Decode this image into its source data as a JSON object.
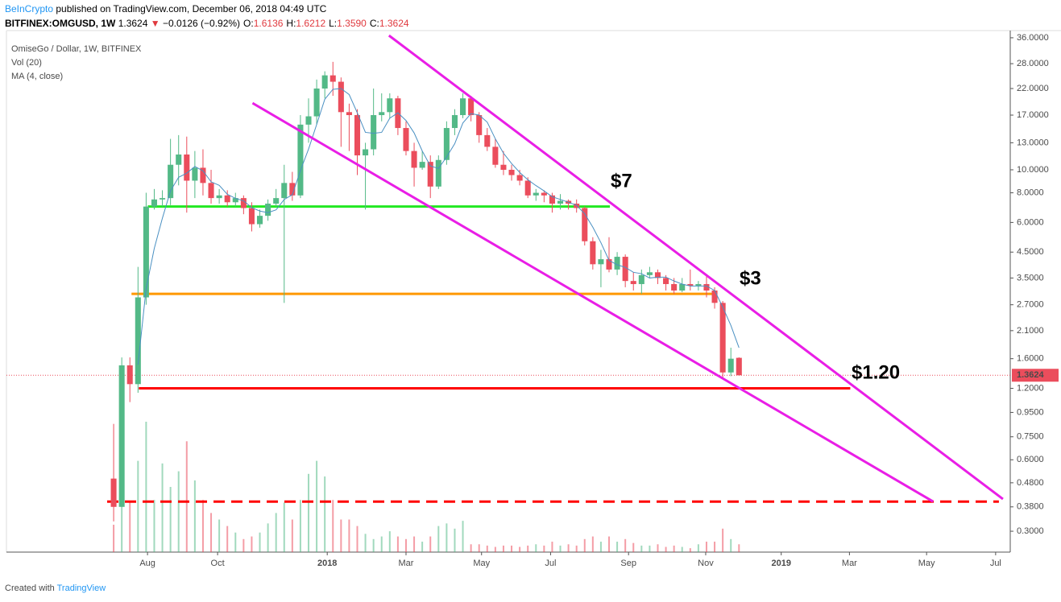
{
  "header": {
    "publisher": "BeInCrypto",
    "published": "published on TradingView.com, December 06, 2018 04:49 UTC",
    "symbol": "BITFINEX:OMGUSD, 1W",
    "last": "1.3624",
    "arrow": "▼",
    "change": "−0.0126 (−0.92%)",
    "ohlc": [
      {
        "key": "O:",
        "value": "1.6136"
      },
      {
        "key": "H:",
        "value": "1.6212"
      },
      {
        "key": "L:",
        "value": "1.3590"
      },
      {
        "key": "C:",
        "value": "1.3624"
      }
    ]
  },
  "chart_data": {
    "type": "candlestick",
    "title": "OmiseGo / Dollar, 1W, BITFINEX",
    "indicators": [
      "Vol (20)",
      "MA (4, close)"
    ],
    "log_scale": true,
    "grid": false,
    "up_color": "#53b987",
    "down_color": "#eb4d5c",
    "ma_color": "#4a90c2",
    "xlim": [
      -13.2,
      110.4
    ],
    "ylim": [
      0.245,
      38.6
    ],
    "xticks": [
      {
        "value": 4.17,
        "label": "Aug"
      },
      {
        "value": 12.8,
        "label": "Oct"
      },
      {
        "value": 26.3,
        "label": "2018"
      },
      {
        "value": 36.0,
        "label": "Mar"
      },
      {
        "value": 45.3,
        "label": "May"
      },
      {
        "value": 53.8,
        "label": "Jul"
      },
      {
        "value": 63.4,
        "label": "Sep"
      },
      {
        "value": 72.9,
        "label": "Nov"
      },
      {
        "value": 82.2,
        "label": "2019"
      },
      {
        "value": 90.6,
        "label": "Mar"
      },
      {
        "value": 100.1,
        "label": "May"
      },
      {
        "value": 108.6,
        "label": "Jul"
      }
    ],
    "yticks": [
      {
        "value": 36,
        "label": "36.0000"
      },
      {
        "value": 28,
        "label": "28.0000"
      },
      {
        "value": 22,
        "label": "22.0000"
      },
      {
        "value": 17,
        "label": "17.0000"
      },
      {
        "value": 13,
        "label": "13.0000"
      },
      {
        "value": 10,
        "label": "10.0000"
      },
      {
        "value": 8,
        "label": "8.0000"
      },
      {
        "value": 6,
        "label": "6.0000"
      },
      {
        "value": 4.5,
        "label": "4.5000"
      },
      {
        "value": 3.5,
        "label": "3.5000"
      },
      {
        "value": 2.7,
        "label": "2.7000"
      },
      {
        "value": 2.1,
        "label": "2.1000"
      },
      {
        "value": 1.6,
        "label": "1.6000"
      },
      {
        "value": 1.2,
        "label": "1.2000"
      },
      {
        "value": 0.95,
        "label": "0.9500"
      },
      {
        "value": 0.75,
        "label": "0.7500"
      },
      {
        "value": 0.6,
        "label": "0.6000"
      },
      {
        "value": 0.48,
        "label": "0.4800"
      },
      {
        "value": 0.38,
        "label": "0.3800"
      },
      {
        "value": 0.3,
        "label": "0.3000"
      }
    ],
    "candles": [
      [
        0.5,
        0.85,
        0.33,
        0.38
      ],
      [
        0.38,
        1.62,
        0.38,
        1.5
      ],
      [
        1.5,
        1.62,
        1.05,
        1.25
      ],
      [
        1.25,
        3.9,
        1.15,
        2.9
      ],
      [
        2.9,
        8,
        2.7,
        7
      ],
      [
        7,
        8.3,
        6.8,
        7.5
      ],
      [
        7.5,
        8.2,
        7,
        7.6
      ],
      [
        7.6,
        13.5,
        7.1,
        10.5
      ],
      [
        10.5,
        14,
        8.6,
        11.6
      ],
      [
        11.6,
        13.8,
        6.6,
        9
      ],
      [
        9,
        12,
        7.6,
        10.2
      ],
      [
        10.2,
        12.2,
        7.8,
        8.8
      ],
      [
        8.8,
        10,
        7.2,
        7.6
      ],
      [
        7.6,
        8.3,
        7.2,
        7.8
      ],
      [
        7.8,
        8.2,
        7,
        7.3
      ],
      [
        7.3,
        8,
        7,
        7.6
      ],
      [
        7.6,
        7.8,
        6.5,
        6.9
      ],
      [
        6.9,
        7.3,
        5.5,
        5.9
      ],
      [
        5.9,
        6.8,
        5.7,
        6.4
      ],
      [
        6.4,
        7.5,
        6.1,
        7.2
      ],
      [
        7.2,
        8.3,
        7,
        7.6
      ],
      [
        7.6,
        10.5,
        2.75,
        8.8
      ],
      [
        8.8,
        9.8,
        7.4,
        7.8
      ],
      [
        7.8,
        17,
        7.6,
        15.5
      ],
      [
        15.5,
        20,
        13,
        16.8
      ],
      [
        16.8,
        24,
        15.5,
        22
      ],
      [
        22,
        26,
        20,
        25
      ],
      [
        25,
        28.5,
        20.5,
        23.5
      ],
      [
        23.5,
        24.5,
        12.5,
        17.5
      ],
      [
        17.5,
        19,
        12,
        17
      ],
      [
        17,
        18,
        9.5,
        11.5
      ],
      [
        11.5,
        13,
        6.8,
        12.2
      ],
      [
        12.2,
        22,
        11.5,
        17
      ],
      [
        17,
        21,
        16,
        17.5
      ],
      [
        17.5,
        21,
        16.5,
        20
      ],
      [
        20,
        20.5,
        14,
        15
      ],
      [
        15,
        16,
        11.5,
        12
      ],
      [
        12,
        13,
        8.5,
        10.2
      ],
      [
        10.2,
        12,
        10,
        10.8
      ],
      [
        10.8,
        11.5,
        7.6,
        8.5
      ],
      [
        8.5,
        11.5,
        8.3,
        11
      ],
      [
        11,
        16,
        10.5,
        15
      ],
      [
        15,
        18,
        14,
        17
      ],
      [
        17,
        21,
        16.5,
        20
      ],
      [
        20,
        20.5,
        16,
        17
      ],
      [
        17,
        17.5,
        13,
        14
      ],
      [
        14,
        15,
        12,
        12.5
      ],
      [
        12.5,
        13.5,
        10.2,
        10.5
      ],
      [
        10.5,
        12,
        9.5,
        10
      ],
      [
        10,
        10.5,
        9,
        9.5
      ],
      [
        9.5,
        10,
        8.6,
        9
      ],
      [
        9,
        9.3,
        7.6,
        7.8
      ],
      [
        7.8,
        8.3,
        7.4,
        8
      ],
      [
        8,
        8.2,
        7.3,
        7.8
      ],
      [
        7.8,
        8,
        6.6,
        7.2
      ],
      [
        7.2,
        7.9,
        6.8,
        7.4
      ],
      [
        7.4,
        7.5,
        6.8,
        7.2
      ],
      [
        7.2,
        7.5,
        6.6,
        6.9
      ],
      [
        6.9,
        7,
        4.8,
        5
      ],
      [
        5,
        5.2,
        3.8,
        4
      ],
      [
        4,
        4.6,
        3.2,
        4.2
      ],
      [
        4.2,
        5.2,
        3.7,
        3.8
      ],
      [
        3.8,
        4.5,
        3.6,
        4.3
      ],
      [
        4.3,
        4.4,
        3.2,
        3.4
      ],
      [
        3.4,
        3.7,
        3.1,
        3.3
      ],
      [
        3.3,
        3.8,
        3,
        3.6
      ],
      [
        3.6,
        3.9,
        3.5,
        3.7
      ],
      [
        3.7,
        3.8,
        3.3,
        3.5
      ],
      [
        3.5,
        3.6,
        3.1,
        3.3
      ],
      [
        3.3,
        3.5,
        3,
        3.1
      ],
      [
        3.1,
        3.5,
        3.05,
        3.3
      ],
      [
        3.3,
        3.8,
        3.1,
        3.25
      ],
      [
        3.25,
        3.4,
        3.1,
        3.3
      ],
      [
        3.3,
        3.6,
        2.9,
        3.1
      ],
      [
        3.1,
        3.2,
        2.6,
        2.75
      ],
      [
        2.75,
        2.8,
        1.32,
        1.4
      ],
      [
        1.4,
        1.78,
        1.35,
        1.6
      ],
      [
        1.6136,
        1.6212,
        1.359,
        1.3624
      ]
    ],
    "ma": [
      null,
      null,
      null,
      1.51,
      3.16,
      4.66,
      6.25,
      8.15,
      9.3,
      9.68,
      10.33,
      9.9,
      8.9,
      8.6,
      7.88,
      7.58,
      7.4,
      6.93,
      6.7,
      6.6,
      6.78,
      7.5,
      7.85,
      9.93,
      12.23,
      15.53,
      19.83,
      21.83,
      22,
      20.75,
      17.38,
      14.38,
      14.25,
      14.38,
      16.5,
      17.38,
      16.13,
      14.3,
      12,
      10.38,
      10.13,
      11.33,
      12.88,
      15.75,
      17.25,
      17,
      15.88,
      13.5,
      11.75,
      10.63,
      9.75,
      9.08,
      8.58,
      8.15,
      7.7,
      7.5,
      7.3,
      7.08,
      6.53,
      5.73,
      4.93,
      4.15,
      3.98,
      3.88,
      3.7,
      3.65,
      3.5,
      3.53,
      3.53,
      3.4,
      3.3,
      3.24,
      3.24,
      3.24,
      3.1,
      2.64,
      2.21,
      1.78
    ],
    "volume": [
      21,
      45,
      38,
      70,
      100,
      40,
      68,
      50,
      62,
      85,
      55,
      40,
      30,
      25,
      20,
      15,
      10,
      12,
      15,
      22,
      30,
      38,
      25,
      40,
      60,
      70,
      58,
      40,
      25,
      25,
      20,
      14,
      10,
      12,
      16,
      12,
      10,
      12,
      8,
      12,
      20,
      22,
      18,
      24,
      6,
      6,
      5,
      4,
      5,
      5,
      4,
      5,
      6,
      5,
      8,
      5,
      6,
      5,
      10,
      12,
      8,
      12,
      8,
      10,
      7,
      5,
      5,
      6,
      4,
      5,
      4,
      3,
      6,
      8,
      8,
      18,
      10,
      6
    ],
    "last_price": 1.3624,
    "levels": [
      {
        "value": 7,
        "x": [
          4.2,
          61.1
        ],
        "color": "#22e822",
        "dashed": false
      },
      {
        "value": 3,
        "x": [
          2.2,
          73.8
        ],
        "color": "#ff9800",
        "dashed": false
      },
      {
        "value": 1.2,
        "x": [
          3.1,
          90.7
        ],
        "color": "#ff0000",
        "dashed": false
      },
      {
        "value": 0.4,
        "x": [
          -0.8,
          109.0
        ],
        "color": "#ff0000",
        "dashed": true
      }
    ],
    "trendlines": [
      {
        "x": [
          33.9,
          109.5
        ],
        "y": [
          36.8,
          0.41
        ],
        "color": "#e91ee6"
      },
      {
        "x": [
          17.1,
          100.9
        ],
        "y": [
          19.1,
          0.4
        ],
        "color": "#e91ee6"
      }
    ],
    "annotations": [
      "$7",
      "$3",
      "$1.20"
    ]
  },
  "footer": {
    "created": "Created with",
    "brand": "TradingView"
  }
}
